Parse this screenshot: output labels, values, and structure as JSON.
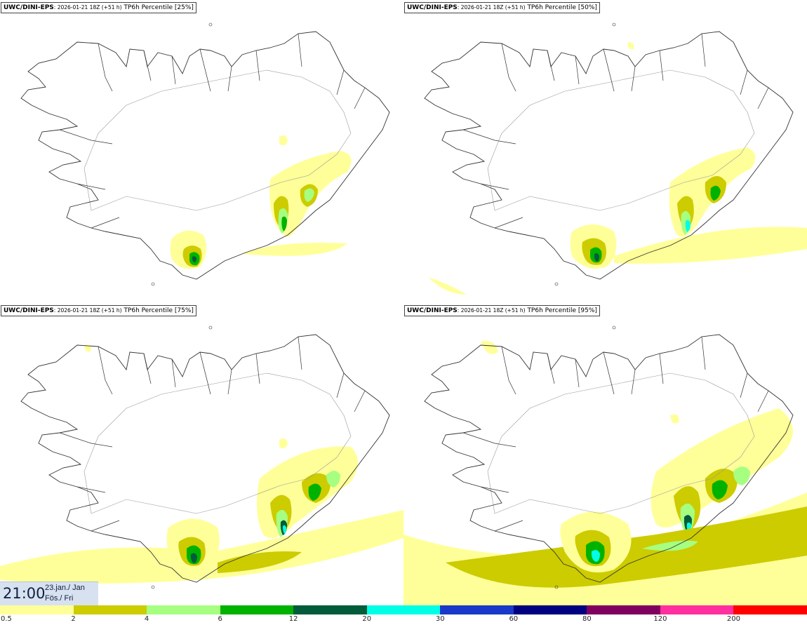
{
  "panels": [
    {
      "model": "UWC/DINI-EPS",
      "run": ": 2026-01-21 18Z (+51 h)",
      "product": "TP6h Percentile [25%]"
    },
    {
      "model": "UWC/DINI-EPS",
      "run": ": 2026-01-21 18Z (+51 h)",
      "product": "TP6h Percentile [50%]"
    },
    {
      "model": "UWC/DINI-EPS",
      "run": ": 2026-01-21 18Z (+51 h)",
      "product": "TP6h Percentile [75%]"
    },
    {
      "model": "UWC/DINI-EPS",
      "run": ": 2026-01-21 18Z (+51 h)",
      "product": "TP6h Percentile [95%]"
    }
  ],
  "valid_time": {
    "time": "21:00",
    "date": "23.jan./ Jan",
    "weekday": "Fös./ Fri"
  },
  "colorbar": {
    "ticks": [
      "0.5",
      "2",
      "4",
      "6",
      "12",
      "20",
      "30",
      "60",
      "80",
      "120",
      "200"
    ],
    "colors": [
      "#ffff99",
      "#cccc00",
      "#a6ff80",
      "#00b200",
      "#005c3a",
      "#00ffe6",
      "#1a39c9",
      "#000080",
      "#800060",
      "#ff2fa0",
      "#ff0000"
    ]
  },
  "map_colors": {
    "land_border": "#333333",
    "roads": "#999999",
    "background": "#ffffff"
  },
  "shading": {
    "panel1_levels": [
      "0.5",
      "2",
      "4",
      "6",
      "12",
      "20"
    ],
    "panel4_levels": [
      "0.5",
      "2",
      "4",
      "6",
      "12",
      "20"
    ]
  }
}
